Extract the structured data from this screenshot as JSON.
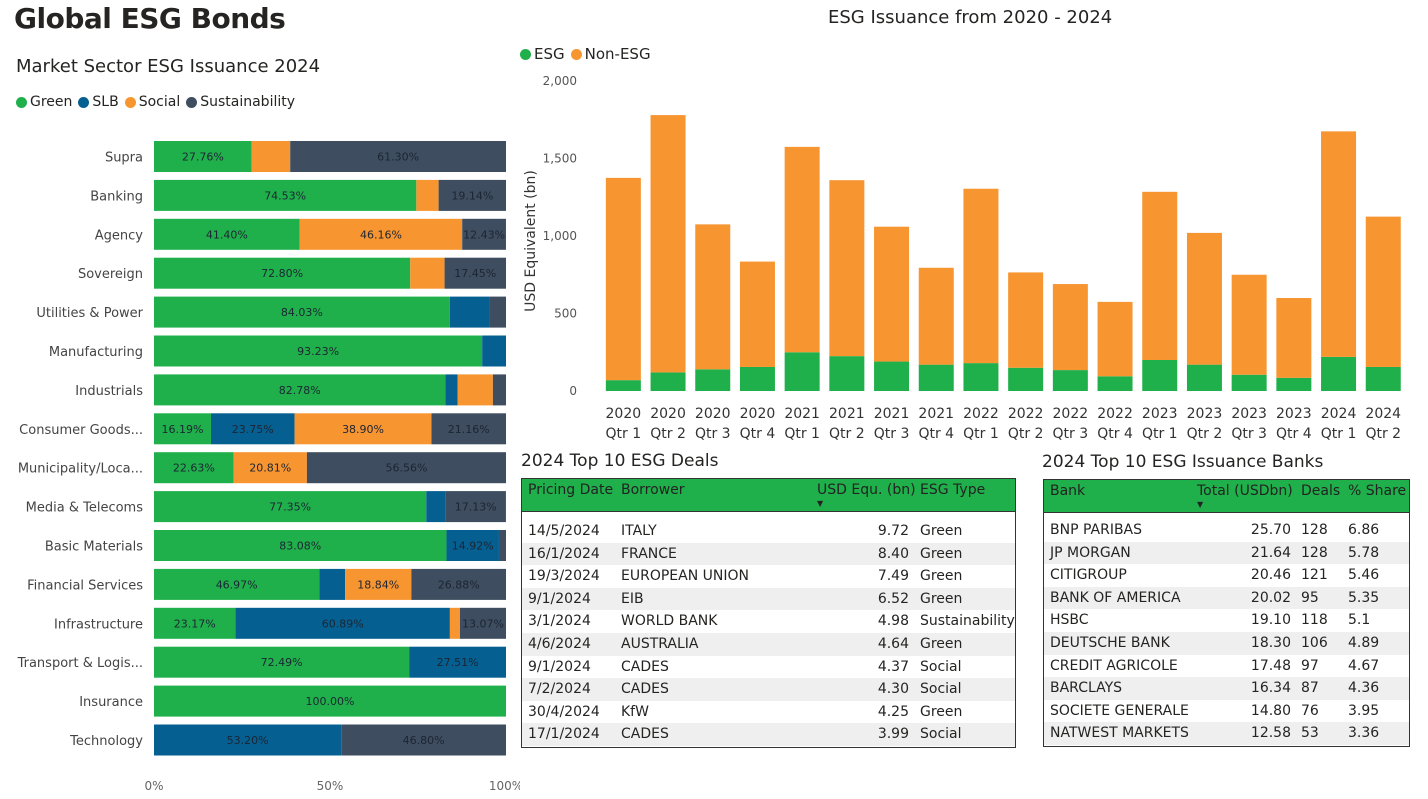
{
  "page": {
    "title": "Global ESG Bonds"
  },
  "colors": {
    "green": "#20b04b",
    "slb": "#065f91",
    "social": "#f79530",
    "sustainability": "#3e4d5f"
  },
  "sector_chart": {
    "title": "Market Sector ESG Issuance 2024",
    "legend": [
      {
        "name": "Green",
        "color": "#20b04b"
      },
      {
        "name": "SLB",
        "color": "#065f91"
      },
      {
        "name": "Social",
        "color": "#f79530"
      },
      {
        "name": "Sustainability",
        "color": "#3e4d5f"
      }
    ],
    "x_ticks": [
      "0%",
      "50%",
      "100%"
    ]
  },
  "quarter_chart": {
    "title": "ESG Issuance from 2020 - 2024",
    "legend": [
      {
        "name": "ESG",
        "color": "#20b04b"
      },
      {
        "name": "Non-ESG",
        "color": "#f79530"
      }
    ],
    "y_ticks": [
      "0",
      "500",
      "1,000",
      "1,500",
      "2,000"
    ]
  },
  "chart_data": [
    {
      "type": "bar",
      "orientation": "horizontal",
      "stacked": "100%",
      "title": "Market Sector ESG Issuance 2024",
      "xlim": [
        0,
        100
      ],
      "categories": [
        "Supra",
        "Banking",
        "Agency",
        "Sovereign",
        "Utilities & Power",
        "Manufacturing",
        "Industrials",
        "Consumer Goods...",
        "Municipality/Loca...",
        "Media & Telecoms",
        "Basic Materials",
        "Financial Services",
        "Infrastructure",
        "Transport & Logis...",
        "Insurance",
        "Technology"
      ],
      "series": [
        {
          "name": "Green",
          "values": [
            27.76,
            74.53,
            41.4,
            72.8,
            84.03,
            93.23,
            82.78,
            16.19,
            22.63,
            77.35,
            83.08,
            46.97,
            23.17,
            72.49,
            100.0,
            0
          ]
        },
        {
          "name": "SLB",
          "values": [
            0,
            0,
            0,
            0,
            11.3,
            6.77,
            3.5,
            23.75,
            0,
            5.5,
            14.92,
            7.31,
            60.89,
            27.51,
            0,
            53.2
          ]
        },
        {
          "name": "Social",
          "values": [
            10.94,
            6.33,
            46.16,
            9.75,
            0,
            0,
            10.0,
            38.9,
            20.81,
            0,
            0,
            18.84,
            2.87,
            0,
            0,
            0
          ]
        },
        {
          "name": "Sustainability",
          "values": [
            61.3,
            19.14,
            12.43,
            17.45,
            4.67,
            0,
            3.72,
            21.16,
            56.56,
            17.13,
            2.0,
            26.88,
            13.07,
            0,
            0,
            46.8
          ]
        }
      ],
      "data_labels": [
        [
          "27.76%",
          "",
          "",
          "61.30%"
        ],
        [
          "74.53%",
          "",
          "",
          "19.14%"
        ],
        [
          "41.40%",
          "",
          "46.16%",
          "12.43%"
        ],
        [
          "72.80%",
          "",
          "",
          "17.45%"
        ],
        [
          "84.03%",
          "",
          "",
          ""
        ],
        [
          "93.23%",
          "",
          "",
          ""
        ],
        [
          "82.78%",
          "",
          "",
          ""
        ],
        [
          "16.19%",
          "23.75%",
          "38.90%",
          "21.16%"
        ],
        [
          "22.63%",
          "",
          "20.81%",
          "56.56%"
        ],
        [
          "77.35%",
          "",
          "",
          "17.13%"
        ],
        [
          "83.08%",
          "14.92%",
          "",
          ""
        ],
        [
          "46.97%",
          "",
          "18.84%",
          "26.88%"
        ],
        [
          "23.17%",
          "60.89%",
          "",
          "13.07%"
        ],
        [
          "72.49%",
          "27.51%",
          "",
          ""
        ],
        [
          "100.00%",
          "",
          "",
          ""
        ],
        [
          "",
          "53.20%",
          "",
          "46.80%"
        ]
      ]
    },
    {
      "type": "bar",
      "orientation": "vertical",
      "stacked": true,
      "title": "ESG Issuance from 2020 - 2024",
      "ylabel": "USD Equivalent (bn)",
      "ylim": [
        0,
        2000
      ],
      "categories": [
        [
          "2020",
          "Qtr 1"
        ],
        [
          "2020",
          "Qtr 2"
        ],
        [
          "2020",
          "Qtr 3"
        ],
        [
          "2020",
          "Qtr 4"
        ],
        [
          "2021",
          "Qtr 1"
        ],
        [
          "2021",
          "Qtr 2"
        ],
        [
          "2021",
          "Qtr 3"
        ],
        [
          "2021",
          "Qtr 4"
        ],
        [
          "2022",
          "Qtr 1"
        ],
        [
          "2022",
          "Qtr 2"
        ],
        [
          "2022",
          "Qtr 3"
        ],
        [
          "2022",
          "Qtr 4"
        ],
        [
          "2023",
          "Qtr 1"
        ],
        [
          "2023",
          "Qtr 2"
        ],
        [
          "2023",
          "Qtr 3"
        ],
        [
          "2023",
          "Qtr 4"
        ],
        [
          "2024",
          "Qtr 1"
        ],
        [
          "2024",
          "Qtr 2"
        ]
      ],
      "series": [
        {
          "name": "ESG",
          "values": [
            70,
            120,
            140,
            155,
            250,
            225,
            190,
            170,
            180,
            150,
            135,
            95,
            200,
            170,
            105,
            85,
            220,
            155
          ]
        },
        {
          "name": "Non-ESG",
          "values": [
            1305,
            1660,
            935,
            680,
            1325,
            1135,
            870,
            625,
            1125,
            615,
            555,
            480,
            1085,
            850,
            645,
            515,
            1455,
            970
          ]
        }
      ]
    }
  ],
  "deals_table": {
    "title": "2024 Top 10 ESG Deals",
    "columns": [
      "Pricing Date",
      "Borrower",
      "USD Equ. (bn)",
      "ESG Type"
    ],
    "sort_mark": "▼",
    "rows": [
      [
        "14/5/2024",
        "ITALY",
        "9.72",
        "Green"
      ],
      [
        "16/1/2024",
        "FRANCE",
        "8.40",
        "Green"
      ],
      [
        "19/3/2024",
        "EUROPEAN UNION",
        "7.49",
        "Green"
      ],
      [
        "9/1/2024",
        "EIB",
        "6.52",
        "Green"
      ],
      [
        "3/1/2024",
        "WORLD BANK",
        "4.98",
        "Sustainability"
      ],
      [
        "4/6/2024",
        "AUSTRALIA",
        "4.64",
        "Green"
      ],
      [
        "9/1/2024",
        "CADES",
        "4.37",
        "Social"
      ],
      [
        "7/2/2024",
        "CADES",
        "4.30",
        "Social"
      ],
      [
        "30/4/2024",
        "KfW",
        "4.25",
        "Green"
      ],
      [
        "17/1/2024",
        "CADES",
        "3.99",
        "Social"
      ]
    ]
  },
  "banks_table": {
    "title": "2024 Top 10 ESG Issuance Banks",
    "columns": [
      "Bank",
      "Total (USDbn)",
      "Deals",
      "% Share"
    ],
    "sort_mark": "▼",
    "rows": [
      [
        "BNP PARIBAS",
        "25.70",
        "128",
        "6.86"
      ],
      [
        "JP MORGAN",
        "21.64",
        "128",
        "5.78"
      ],
      [
        "CITIGROUP",
        "20.46",
        "121",
        "5.46"
      ],
      [
        "BANK OF AMERICA",
        "20.02",
        "95",
        "5.35"
      ],
      [
        "HSBC",
        "19.10",
        "118",
        "5.1"
      ],
      [
        "DEUTSCHE BANK",
        "18.30",
        "106",
        "4.89"
      ],
      [
        "CREDIT AGRICOLE",
        "17.48",
        "97",
        "4.67"
      ],
      [
        "BARCLAYS",
        "16.34",
        "87",
        "4.36"
      ],
      [
        "SOCIETE GENERALE",
        "14.80",
        "76",
        "3.95"
      ],
      [
        "NATWEST MARKETS",
        "12.58",
        "53",
        "3.36"
      ]
    ]
  }
}
